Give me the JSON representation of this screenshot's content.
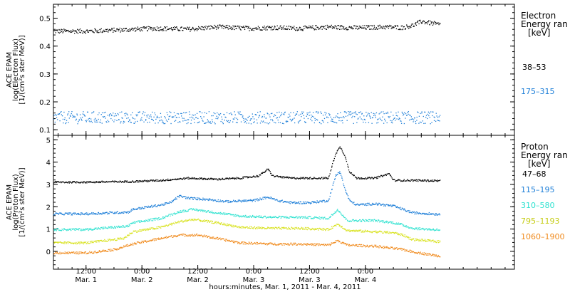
{
  "chart_data": [
    {
      "type": "scatter",
      "panel": "electron",
      "ylabel_lines": [
        "ACE EPAM",
        "log(Electron Flux)",
        "[1/(cm²s ster MeV)]"
      ],
      "ylim": [
        0.08,
        0.55
      ],
      "yticks": [
        0.1,
        0.2,
        0.3,
        0.4,
        0.5
      ],
      "ytick_labels": [
        "0.1",
        "0.2",
        "0.3",
        "0.4",
        "0.5"
      ],
      "legend_title_lines": [
        "Electron",
        "Energy ran",
        "[keV]"
      ],
      "grid": false,
      "series": [
        {
          "name": "38–53",
          "color": "#000000",
          "profile": [
            [
              0,
              0.455
            ],
            [
              8,
              0.46
            ],
            [
              15,
              0.465
            ],
            [
              22,
              0.462
            ],
            [
              28,
              0.47
            ],
            [
              35,
              0.465
            ],
            [
              40,
              0.468
            ],
            [
              46,
              0.465
            ],
            [
              52,
              0.47
            ],
            [
              58,
              0.467
            ],
            [
              64,
              0.47
            ],
            [
              68,
              0.468
            ],
            [
              70,
              0.475
            ],
            [
              72,
              0.49
            ],
            [
              76,
              0.478
            ]
          ],
          "scatter": 0.008
        },
        {
          "name": "175–315",
          "color": "#1e7fd8",
          "profile": [
            [
              0,
              0.145
            ],
            [
              76,
              0.145
            ]
          ],
          "scatter": 0.022
        }
      ]
    },
    {
      "type": "scatter",
      "panel": "proton",
      "ylabel_lines": [
        "ACE EPAM",
        "log(Proton Flux)",
        "[1/(cm²s ster MeV)]"
      ],
      "ylim": [
        -0.8,
        5.2
      ],
      "yticks": [
        0,
        1,
        2,
        3,
        4,
        5
      ],
      "ytick_labels": [
        "0",
        "1",
        "2",
        "3",
        "4",
        "5"
      ],
      "legend_title_lines": [
        "Proton",
        "Energy ran",
        "[keV]"
      ],
      "grid": false,
      "series": [
        {
          "name": "47–68",
          "color": "#000000",
          "profile": [
            [
              0,
              3.12
            ],
            [
              10,
              3.15
            ],
            [
              16,
              3.2
            ],
            [
              22,
              3.3
            ],
            [
              28,
              3.25
            ],
            [
              33,
              3.3
            ],
            [
              37,
              3.4
            ],
            [
              39,
              3.7
            ],
            [
              40,
              3.4
            ],
            [
              44,
              3.3
            ],
            [
              52,
              3.3
            ],
            [
              53.5,
              4.4
            ],
            [
              54.5,
              4.7
            ],
            [
              55.5,
              4.3
            ],
            [
              56.5,
              3.6
            ],
            [
              58,
              3.3
            ],
            [
              62,
              3.3
            ],
            [
              65,
              3.5
            ],
            [
              66,
              3.2
            ],
            [
              70,
              3.2
            ],
            [
              76,
              3.18
            ]
          ],
          "scatter": 0.04
        },
        {
          "name": "115–195",
          "color": "#1e7fd8",
          "profile": [
            [
              0,
              1.7
            ],
            [
              9,
              1.78
            ],
            [
              10,
              1.9
            ],
            [
              16,
              2.1
            ],
            [
              18,
              2.2
            ],
            [
              20,
              2.5
            ],
            [
              22,
              2.4
            ],
            [
              26,
              2.35
            ],
            [
              30,
              2.25
            ],
            [
              36,
              2.3
            ],
            [
              39,
              2.45
            ],
            [
              41,
              2.3
            ],
            [
              44,
              2.2
            ],
            [
              48,
              2.2
            ],
            [
              52,
              2.3
            ],
            [
              53.5,
              3.4
            ],
            [
              54.5,
              3.6
            ],
            [
              55.5,
              2.8
            ],
            [
              56.5,
              2.3
            ],
            [
              58,
              2.1
            ],
            [
              62,
              2.15
            ],
            [
              66,
              2.05
            ],
            [
              68,
              1.9
            ],
            [
              70,
              1.75
            ],
            [
              76,
              1.68
            ]
          ],
          "scatter": 0.05
        },
        {
          "name": "310–580",
          "color": "#2fe2d0",
          "profile": [
            [
              0,
              1.0
            ],
            [
              9,
              1.15
            ],
            [
              10,
              1.3
            ],
            [
              16,
              1.5
            ],
            [
              20,
              1.8
            ],
            [
              23,
              1.9
            ],
            [
              28,
              1.75
            ],
            [
              33,
              1.6
            ],
            [
              40,
              1.55
            ],
            [
              46,
              1.55
            ],
            [
              52,
              1.5
            ],
            [
              54,
              1.9
            ],
            [
              56,
              1.4
            ],
            [
              62,
              1.4
            ],
            [
              66,
              1.3
            ],
            [
              68,
              1.2
            ],
            [
              70,
              1.05
            ],
            [
              76,
              0.98
            ]
          ],
          "scatter": 0.05
        },
        {
          "name": "795–1193",
          "color": "#d8e21e",
          "profile": [
            [
              0,
              0.4
            ],
            [
              8,
              0.6
            ],
            [
              10,
              0.9
            ],
            [
              16,
              1.1
            ],
            [
              20,
              1.35
            ],
            [
              23,
              1.45
            ],
            [
              28,
              1.3
            ],
            [
              33,
              1.1
            ],
            [
              40,
              1.05
            ],
            [
              46,
              1.05
            ],
            [
              52,
              1.0
            ],
            [
              54,
              1.25
            ],
            [
              56,
              0.95
            ],
            [
              62,
              0.9
            ],
            [
              66,
              0.85
            ],
            [
              68,
              0.75
            ],
            [
              70,
              0.55
            ],
            [
              76,
              0.45
            ]
          ],
          "scatter": 0.05
        },
        {
          "name": "1060–1900",
          "color": "#f08a1c",
          "profile": [
            [
              0,
              -0.05
            ],
            [
              6,
              0.1
            ],
            [
              10,
              0.35
            ],
            [
              16,
              0.6
            ],
            [
              20,
              0.75
            ],
            [
              24,
              0.75
            ],
            [
              28,
              0.6
            ],
            [
              33,
              0.4
            ],
            [
              40,
              0.35
            ],
            [
              46,
              0.35
            ],
            [
              52,
              0.3
            ],
            [
              54,
              0.5
            ],
            [
              56,
              0.3
            ],
            [
              62,
              0.25
            ],
            [
              66,
              0.15
            ],
            [
              68,
              0.1
            ],
            [
              70,
              0.0
            ],
            [
              76,
              -0.2
            ]
          ],
          "scatter": 0.05
        }
      ]
    }
  ],
  "x_axis": {
    "xlabel": "hours:minutes, Mar.  1, 2011 - Mar.  4, 2011",
    "xlim_hours": [
      -7,
      92
    ],
    "ticks": [
      {
        "hour": 0,
        "time": "12:00",
        "date": "Mar. 1"
      },
      {
        "hour": 12,
        "time": "0:00",
        "date": "Mar. 2"
      },
      {
        "hour": 24,
        "time": "12:00",
        "date": "Mar. 2"
      },
      {
        "hour": 36,
        "time": "0:00",
        "date": "Mar. 3"
      },
      {
        "hour": 48,
        "time": "12:00",
        "date": "Mar. 3"
      },
      {
        "hour": 60,
        "time": "0:00",
        "date": "Mar. 4"
      }
    ]
  },
  "data_x_range_hours": [
    -7,
    76
  ]
}
